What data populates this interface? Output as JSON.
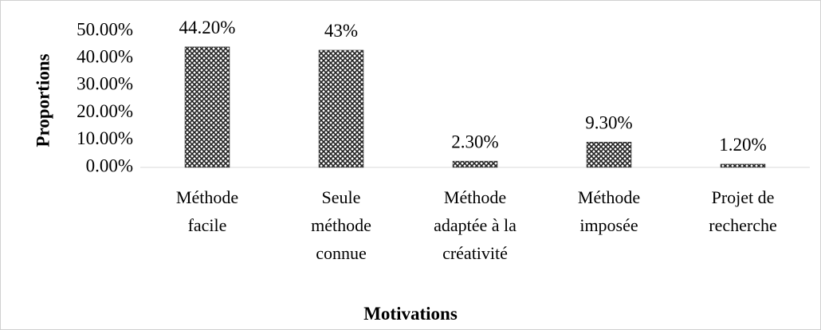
{
  "chart_data": {
    "type": "bar",
    "categories": [
      "Méthode facile",
      "Seule méthode connue",
      "Méthode adaptée à la créativité",
      "Méthode imposée",
      "Projet de recherche"
    ],
    "values": [
      44.2,
      43,
      2.3,
      9.3,
      1.2
    ],
    "value_labels": [
      "44.20%",
      "43%",
      "2.30%",
      "9.30%",
      "1.20%"
    ],
    "x_label": "Motivations",
    "y_label": "Proportions",
    "ylim": [
      0,
      50
    ],
    "yticks": [
      {
        "value": 0,
        "label": "0.00%"
      },
      {
        "value": 10,
        "label": "10.00%"
      },
      {
        "value": 20,
        "label": "20.00%"
      },
      {
        "value": 30,
        "label": "30.00%"
      },
      {
        "value": 40,
        "label": "40.00%"
      },
      {
        "value": 50,
        "label": "50.00%"
      }
    ],
    "grid": false,
    "color": "#333333"
  }
}
